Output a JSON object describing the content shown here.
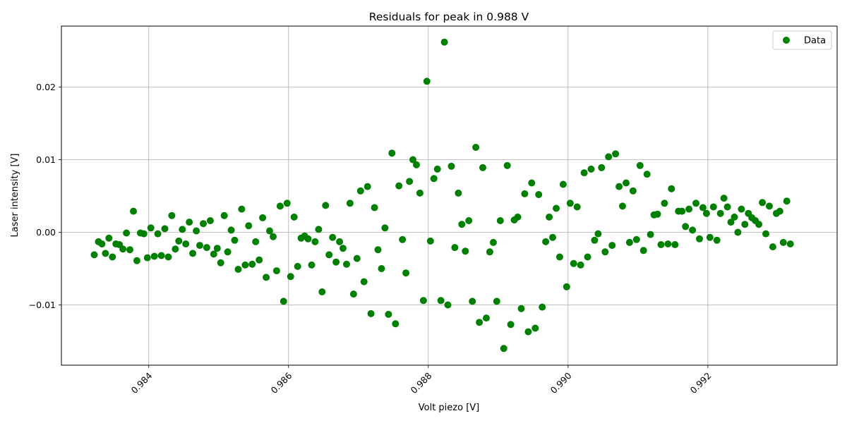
{
  "chart_data": {
    "type": "scatter",
    "title": "Residuals for peak in 0.988 V",
    "xlabel": "Volt piezo [V]",
    "ylabel": "Laser intensity [V]",
    "xlim": [
      0.98275,
      0.99385
    ],
    "ylim": [
      -0.0183,
      0.0284
    ],
    "xticks": [
      0.984,
      0.986,
      0.988,
      0.99,
      0.992
    ],
    "xtick_labels": [
      "0.984",
      "0.986",
      "0.988",
      "0.990",
      "0.992"
    ],
    "yticks": [
      -0.01,
      0.0,
      0.01,
      0.02
    ],
    "ytick_labels": [
      "−0.01",
      "0.00",
      "0.01",
      "0.02"
    ],
    "grid": true,
    "legend": {
      "position": "top-right",
      "entries": [
        "Data"
      ]
    },
    "series": [
      {
        "name": "Data",
        "color": "#008000",
        "points": [
          [
            0.98322,
            -0.0031
          ],
          [
            0.98328,
            -0.0013
          ],
          [
            0.98333,
            -0.0016
          ],
          [
            0.98338,
            -0.0029
          ],
          [
            0.98343,
            -0.0008
          ],
          [
            0.98348,
            -0.0034
          ],
          [
            0.98353,
            -0.0016
          ],
          [
            0.98358,
            -0.0017
          ],
          [
            0.98363,
            -0.0023
          ],
          [
            0.98368,
            -0.0001
          ],
          [
            0.98373,
            -0.0024
          ],
          [
            0.98378,
            0.0029
          ],
          [
            0.98383,
            -0.0039
          ],
          [
            0.98388,
            -0.0001
          ],
          [
            0.98393,
            -0.0002
          ],
          [
            0.98398,
            -0.0035
          ],
          [
            0.98403,
            0.0006
          ],
          [
            0.98408,
            -0.0033
          ],
          [
            0.98413,
            -0.0002
          ],
          [
            0.98418,
            -0.0032
          ],
          [
            0.98423,
            0.0005
          ],
          [
            0.98428,
            -0.0034
          ],
          [
            0.98433,
            0.0023
          ],
          [
            0.98438,
            -0.0023
          ],
          [
            0.98443,
            -0.0012
          ],
          [
            0.98448,
            0.0004
          ],
          [
            0.98453,
            -0.0016
          ],
          [
            0.98458,
            0.0014
          ],
          [
            0.98463,
            -0.0029
          ],
          [
            0.98468,
            0.0002
          ],
          [
            0.98473,
            -0.0018
          ],
          [
            0.98478,
            0.0012
          ],
          [
            0.98483,
            -0.0021
          ],
          [
            0.98488,
            0.0016
          ],
          [
            0.98493,
            -0.003
          ],
          [
            0.98498,
            -0.0022
          ],
          [
            0.98503,
            -0.0042
          ],
          [
            0.98508,
            0.0023
          ],
          [
            0.98513,
            -0.0027
          ],
          [
            0.98518,
            0.0003
          ],
          [
            0.98523,
            -0.0011
          ],
          [
            0.98528,
            -0.0051
          ],
          [
            0.98533,
            0.0032
          ],
          [
            0.98538,
            -0.0045
          ],
          [
            0.98543,
            0.0009
          ],
          [
            0.98548,
            -0.0044
          ],
          [
            0.98553,
            -0.0013
          ],
          [
            0.98558,
            -0.0038
          ],
          [
            0.98563,
            0.002
          ],
          [
            0.98568,
            -0.0062
          ],
          [
            0.98573,
            0.0002
          ],
          [
            0.98578,
            -0.0006
          ],
          [
            0.98583,
            -0.0053
          ],
          [
            0.98588,
            0.0036
          ],
          [
            0.98593,
            -0.0095
          ],
          [
            0.98598,
            0.004
          ],
          [
            0.98603,
            -0.0061
          ],
          [
            0.98608,
            0.0021
          ],
          [
            0.98613,
            -0.0047
          ],
          [
            0.98618,
            -0.0008
          ],
          [
            0.98623,
            -0.0005
          ],
          [
            0.98628,
            -0.0009
          ],
          [
            0.98633,
            -0.0045
          ],
          [
            0.98638,
            -0.0013
          ],
          [
            0.98643,
            0.0004
          ],
          [
            0.98648,
            -0.0082
          ],
          [
            0.98653,
            0.0037
          ],
          [
            0.98658,
            -0.0031
          ],
          [
            0.98663,
            -0.0007
          ],
          [
            0.98668,
            -0.0041
          ],
          [
            0.98673,
            -0.0013
          ],
          [
            0.98678,
            -0.0022
          ],
          [
            0.98683,
            -0.0044
          ],
          [
            0.98688,
            0.004
          ],
          [
            0.98693,
            -0.0085
          ],
          [
            0.98698,
            -0.0036
          ],
          [
            0.98703,
            0.0057
          ],
          [
            0.98708,
            -0.0068
          ],
          [
            0.98713,
            0.0063
          ],
          [
            0.98718,
            -0.0112
          ],
          [
            0.98723,
            0.0034
          ],
          [
            0.98728,
            -0.0024
          ],
          [
            0.98733,
            -0.005
          ],
          [
            0.98738,
            0.0006
          ],
          [
            0.98743,
            -0.0113
          ],
          [
            0.98748,
            0.0109
          ],
          [
            0.98753,
            -0.0126
          ],
          [
            0.98758,
            0.0064
          ],
          [
            0.98763,
            -0.001
          ],
          [
            0.98768,
            -0.0056
          ],
          [
            0.98773,
            0.007
          ],
          [
            0.98778,
            0.01
          ],
          [
            0.98783,
            0.0093
          ],
          [
            0.98788,
            0.0054
          ],
          [
            0.98793,
            -0.0094
          ],
          [
            0.98798,
            0.0208
          ],
          [
            0.98803,
            -0.0012
          ],
          [
            0.98808,
            0.0074
          ],
          [
            0.98813,
            0.0087
          ],
          [
            0.98818,
            -0.0094
          ],
          [
            0.98823,
            0.0262
          ],
          [
            0.98828,
            -0.01
          ],
          [
            0.98833,
            0.0091
          ],
          [
            0.98838,
            -0.0021
          ],
          [
            0.98843,
            0.0054
          ],
          [
            0.98848,
            0.0011
          ],
          [
            0.98853,
            -0.0026
          ],
          [
            0.98858,
            0.0016
          ],
          [
            0.98863,
            -0.0095
          ],
          [
            0.98868,
            0.0117
          ],
          [
            0.98873,
            -0.0124
          ],
          [
            0.98878,
            0.0089
          ],
          [
            0.98883,
            -0.0118
          ],
          [
            0.98888,
            -0.0027
          ],
          [
            0.98893,
            -0.0014
          ],
          [
            0.98898,
            -0.0095
          ],
          [
            0.98903,
            0.0016
          ],
          [
            0.98908,
            -0.016
          ],
          [
            0.98913,
            0.0092
          ],
          [
            0.98918,
            -0.0127
          ],
          [
            0.98923,
            0.0017
          ],
          [
            0.98928,
            0.0021
          ],
          [
            0.98933,
            -0.0105
          ],
          [
            0.98938,
            0.0053
          ],
          [
            0.98943,
            -0.0137
          ],
          [
            0.98948,
            0.0068
          ],
          [
            0.98953,
            -0.0132
          ],
          [
            0.98958,
            0.0052
          ],
          [
            0.98963,
            -0.0103
          ],
          [
            0.98968,
            -0.0013
          ],
          [
            0.98973,
            0.0021
          ],
          [
            0.98978,
            -0.0007
          ],
          [
            0.98983,
            0.0033
          ],
          [
            0.98988,
            -0.0034
          ],
          [
            0.98993,
            0.0066
          ],
          [
            0.98998,
            -0.0075
          ],
          [
            0.99003,
            0.004
          ],
          [
            0.99008,
            -0.0043
          ],
          [
            0.99013,
            0.0035
          ],
          [
            0.99018,
            -0.0045
          ],
          [
            0.99023,
            0.0082
          ],
          [
            0.99028,
            -0.0034
          ],
          [
            0.99033,
            0.0087
          ],
          [
            0.99038,
            -0.0011
          ],
          [
            0.99043,
            -0.0002
          ],
          [
            0.99048,
            0.0089
          ],
          [
            0.99053,
            -0.0027
          ],
          [
            0.99058,
            0.0104
          ],
          [
            0.99063,
            -0.0018
          ],
          [
            0.99068,
            0.0108
          ],
          [
            0.99073,
            0.0063
          ],
          [
            0.99078,
            0.0036
          ],
          [
            0.99083,
            0.0068
          ],
          [
            0.99088,
            -0.0014
          ],
          [
            0.99093,
            0.0057
          ],
          [
            0.99098,
            -0.001
          ],
          [
            0.99103,
            0.0092
          ],
          [
            0.99108,
            -0.0025
          ],
          [
            0.99113,
            0.008
          ],
          [
            0.99118,
            -0.0003
          ],
          [
            0.99123,
            0.0024
          ],
          [
            0.99128,
            0.0025
          ],
          [
            0.99133,
            -0.0017
          ],
          [
            0.99138,
            0.004
          ],
          [
            0.99143,
            -0.0016
          ],
          [
            0.99148,
            0.006
          ],
          [
            0.99153,
            -0.0017
          ],
          [
            0.99158,
            0.0029
          ],
          [
            0.99163,
            0.0029
          ],
          [
            0.99168,
            0.0008
          ],
          [
            0.99173,
            0.0032
          ],
          [
            0.99178,
            0.0003
          ],
          [
            0.99183,
            0.004
          ],
          [
            0.99188,
            -0.0009
          ],
          [
            0.99193,
            0.0034
          ],
          [
            0.99198,
            0.0026
          ],
          [
            0.99203,
            -0.0007
          ],
          [
            0.99208,
            0.0035
          ],
          [
            0.99213,
            -0.0011
          ],
          [
            0.99218,
            0.0026
          ],
          [
            0.99223,
            0.0047
          ],
          [
            0.99228,
            0.0035
          ],
          [
            0.99233,
            0.0014
          ],
          [
            0.99238,
            0.0021
          ],
          [
            0.99243,
            0.0
          ],
          [
            0.99248,
            0.0032
          ],
          [
            0.99253,
            0.0011
          ],
          [
            0.99258,
            0.0026
          ],
          [
            0.99263,
            0.002
          ],
          [
            0.99268,
            0.0016
          ],
          [
            0.99273,
            0.0011
          ],
          [
            0.99278,
            0.0041
          ],
          [
            0.99283,
            -0.0002
          ],
          [
            0.99288,
            0.0036
          ],
          [
            0.99293,
            -0.002
          ],
          [
            0.99298,
            0.0026
          ],
          [
            0.99303,
            0.0029
          ],
          [
            0.99308,
            -0.0014
          ],
          [
            0.99313,
            0.0043
          ],
          [
            0.99318,
            -0.0016
          ]
        ]
      }
    ]
  }
}
